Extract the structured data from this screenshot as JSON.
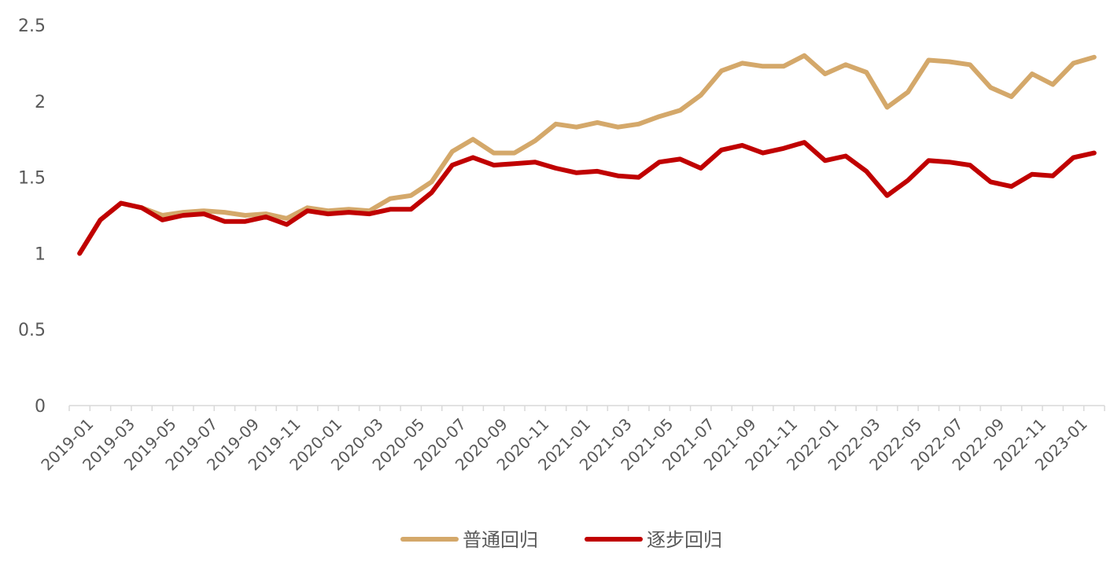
{
  "chart_data": {
    "type": "line",
    "title": "",
    "xlabel": "",
    "ylabel": "",
    "ylim": [
      0,
      2.5
    ],
    "yticks": [
      "0",
      "0.5",
      "1",
      "1.5",
      "2",
      "2.5"
    ],
    "grid": false,
    "legend": "bottom-center",
    "x": [
      "2019-01",
      "2019-02",
      "2019-03",
      "2019-04",
      "2019-05",
      "2019-06",
      "2019-07",
      "2019-08",
      "2019-09",
      "2019-10",
      "2019-11",
      "2019-12",
      "2020-01",
      "2020-02",
      "2020-03",
      "2020-04",
      "2020-05",
      "2020-06",
      "2020-07",
      "2020-08",
      "2020-09",
      "2020-10",
      "2020-11",
      "2020-12",
      "2021-01",
      "2021-02",
      "2021-03",
      "2021-04",
      "2021-05",
      "2021-06",
      "2021-07",
      "2021-08",
      "2021-09",
      "2021-10",
      "2021-11",
      "2021-12",
      "2022-01",
      "2022-02",
      "2022-03",
      "2022-04",
      "2022-05",
      "2022-06",
      "2022-07",
      "2022-08",
      "2022-09",
      "2022-10",
      "2022-11",
      "2022-12",
      "2023-01",
      "2023-02"
    ],
    "x_tick_labels": [
      "2019-01",
      "2019-03",
      "2019-05",
      "2019-07",
      "2019-09",
      "2019-11",
      "2020-01",
      "2020-03",
      "2020-05",
      "2020-07",
      "2020-09",
      "2020-11",
      "2021-01",
      "2021-03",
      "2021-05",
      "2021-07",
      "2021-09",
      "2021-11",
      "2022-01",
      "2022-03",
      "2022-05",
      "2022-07",
      "2022-09",
      "2022-11",
      "2023-01"
    ],
    "series": [
      {
        "name": "普通回归",
        "color": "#D4A86A",
        "values": [
          1.0,
          1.22,
          1.33,
          1.3,
          1.25,
          1.27,
          1.28,
          1.27,
          1.25,
          1.26,
          1.23,
          1.3,
          1.28,
          1.29,
          1.28,
          1.36,
          1.38,
          1.47,
          1.67,
          1.75,
          1.66,
          1.66,
          1.74,
          1.85,
          1.83,
          1.86,
          1.83,
          1.85,
          1.9,
          1.94,
          2.04,
          2.2,
          2.25,
          2.23,
          2.23,
          2.3,
          2.18,
          2.24,
          2.19,
          1.96,
          2.06,
          2.27,
          2.26,
          2.24,
          2.09,
          2.03,
          2.18,
          2.11,
          2.25,
          2.29
        ]
      },
      {
        "name": "逐步回归",
        "color": "#C00000",
        "values": [
          1.0,
          1.22,
          1.33,
          1.3,
          1.22,
          1.25,
          1.26,
          1.21,
          1.21,
          1.24,
          1.19,
          1.28,
          1.26,
          1.27,
          1.26,
          1.29,
          1.29,
          1.4,
          1.58,
          1.63,
          1.58,
          1.59,
          1.6,
          1.56,
          1.53,
          1.54,
          1.51,
          1.5,
          1.6,
          1.62,
          1.56,
          1.68,
          1.71,
          1.66,
          1.69,
          1.73,
          1.61,
          1.64,
          1.54,
          1.38,
          1.48,
          1.61,
          1.6,
          1.58,
          1.47,
          1.44,
          1.52,
          1.51,
          1.63,
          1.66
        ]
      }
    ]
  }
}
